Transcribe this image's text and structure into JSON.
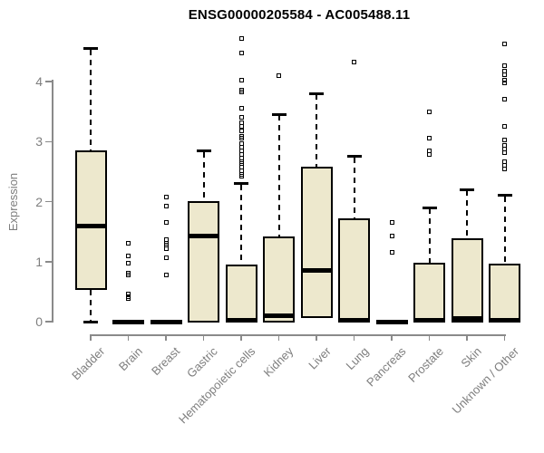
{
  "chart_data": {
    "type": "boxplot",
    "title": "ENSG00000205584 - AC005488.11",
    "ylabel": "Expression",
    "xlabel": "",
    "ylim": [
      0,
      4.8
    ],
    "y_ticks": [
      0,
      1,
      2,
      3,
      4
    ],
    "grid": false,
    "legend": false,
    "colors": {
      "box_fill": "#EDE8CD",
      "box_border": "#000000",
      "axis": "#8a8a8a",
      "tick_text": "#7e7e7e",
      "title_text": "#000000"
    },
    "categories": [
      "Bladder",
      "Brain",
      "Breast",
      "Gastric",
      "Hematopoietic cells",
      "Kidney",
      "Liver",
      "Lung",
      "Pancreas",
      "Prostate",
      "Skin",
      "Unknown / Other"
    ],
    "series": [
      {
        "name": "Bladder",
        "whisker_low": 0,
        "q1": 0.55,
        "median": 1.6,
        "q3": 2.84,
        "whisker_high": 4.55,
        "outliers": []
      },
      {
        "name": "Brain",
        "whisker_low": 0,
        "q1": 0,
        "median": 0,
        "q3": 0,
        "whisker_high": 0,
        "outliers": [
          1.3,
          1.09,
          0.98,
          0.81,
          0.78,
          0.46,
          0.42,
          0.39
        ]
      },
      {
        "name": "Breast",
        "whisker_low": 0,
        "q1": 0,
        "median": 0,
        "q3": 0,
        "whisker_high": 0,
        "outliers": [
          2.08,
          1.93,
          1.66,
          1.36,
          1.31,
          1.27,
          1.22,
          1.06,
          0.78
        ]
      },
      {
        "name": "Gastric",
        "whisker_low": 0,
        "q1": 0,
        "median": 1.43,
        "q3": 2.0,
        "whisker_high": 2.84,
        "outliers": []
      },
      {
        "name": "Hematopoietic cells",
        "whisker_low": 0,
        "q1": 0,
        "median": 0.02,
        "q3": 0.93,
        "whisker_high": 2.3,
        "outliers": [
          4.72,
          4.47,
          4.03,
          3.86,
          3.82,
          3.55,
          3.4,
          3.32,
          3.25,
          3.17,
          3.09,
          3.05,
          2.97,
          2.91,
          2.85,
          2.79,
          2.73,
          2.67,
          2.63,
          2.57,
          2.51,
          2.46,
          2.42
        ]
      },
      {
        "name": "Kidney",
        "whisker_low": 0,
        "q1": 0,
        "median": 0.1,
        "q3": 1.4,
        "whisker_high": 3.45,
        "outliers": [
          4.1
        ]
      },
      {
        "name": "Liver",
        "whisker_low": 0,
        "q1": 0.07,
        "median": 0.85,
        "q3": 2.57,
        "whisker_high": 3.8,
        "outliers": []
      },
      {
        "name": "Lung",
        "whisker_low": 0,
        "q1": 0,
        "median": 0.03,
        "q3": 1.7,
        "whisker_high": 2.75,
        "outliers": [
          4.32
        ]
      },
      {
        "name": "Pancreas",
        "whisker_low": 0,
        "q1": 0,
        "median": 0,
        "q3": 0,
        "whisker_high": 0,
        "outliers": [
          1.66,
          1.43,
          1.15
        ]
      },
      {
        "name": "Prostate",
        "whisker_low": 0,
        "q1": 0,
        "median": 0.03,
        "q3": 0.97,
        "whisker_high": 1.9,
        "outliers": [
          3.5,
          3.06,
          2.84,
          2.79
        ]
      },
      {
        "name": "Skin",
        "whisker_low": 0,
        "q1": 0,
        "median": 0.05,
        "q3": 1.37,
        "whisker_high": 2.2,
        "outliers": []
      },
      {
        "name": "Unknown / Other",
        "whisker_low": 0,
        "q1": 0,
        "median": 0.03,
        "q3": 0.95,
        "whisker_high": 2.1,
        "outliers": [
          4.63,
          4.27,
          4.18,
          4.11,
          4.03,
          3.97,
          3.7,
          3.25,
          3.02,
          2.94,
          2.87,
          2.82,
          2.67,
          2.6,
          2.54
        ]
      }
    ]
  }
}
